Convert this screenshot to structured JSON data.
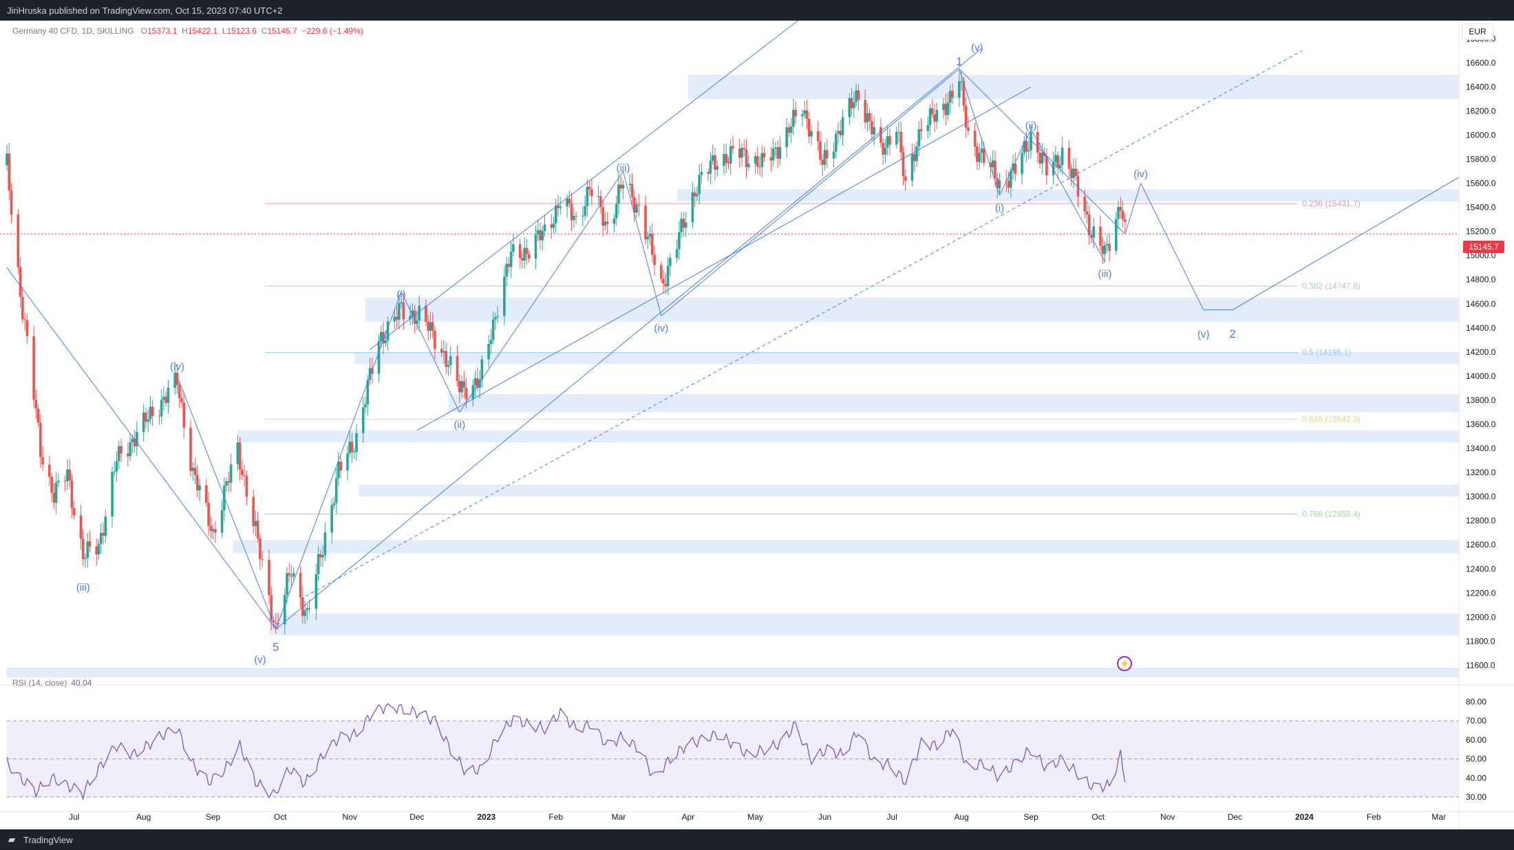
{
  "header": {
    "published": "JiriHruska published on TradingView.com, Oct 15, 2023 07:40 UTC+2"
  },
  "symbol": {
    "title": "Germany 40 CFD, 1D, SKILLING",
    "open_label": "O",
    "open": "15373.1",
    "high_label": "H",
    "high": "15422.1",
    "low_label": "L",
    "low": "15123.6",
    "close_label": "C",
    "close": "15145.7",
    "change": "−229.6 (−1.49%)"
  },
  "currency": "EUR",
  "last_price": "15145.7",
  "rsi": {
    "label": "RSI (14, close)",
    "value": "40.04"
  },
  "footer": {
    "brand": "TradingView"
  },
  "colors": {
    "up": "#26a69a",
    "down": "#ef5350",
    "wave": "#4a7ee8",
    "zone": "#e3ecfb",
    "rsi": "#7e57c2",
    "rsi_band": "#f1eefb"
  },
  "chart_data": {
    "type": "candlestick",
    "title": "Germany 40 CFD, 1D, SKILLING",
    "y_axis": {
      "ticks": [
        "16800.0",
        "16600.0",
        "16400.0",
        "16200.0",
        "16000.0",
        "15800.0",
        "15600.0",
        "15400.0",
        "15200.0",
        "15000.0",
        "14800.0",
        "14600.0",
        "14400.0",
        "14200.0",
        "14000.0",
        "13800.0",
        "13600.0",
        "13400.0",
        "13200.0",
        "13000.0",
        "12800.0",
        "12600.0",
        "12400.0",
        "12200.0",
        "12000.0",
        "11800.0",
        "11600.0"
      ],
      "range": [
        11500,
        16950
      ]
    },
    "x_axis": {
      "ticks": [
        "Jul",
        "Aug",
        "Sep",
        "Oct",
        "Nov",
        "Dec",
        "2023",
        "Feb",
        "Mar",
        "Apr",
        "May",
        "Jun",
        "Jul",
        "Aug",
        "Sep",
        "Oct",
        "Nov",
        "Dec",
        "2024",
        "Feb",
        "Mar"
      ],
      "range": [
        "2022-06-01",
        "2024-03-10"
      ]
    },
    "price_path": [
      [
        "2022-06-01",
        15750
      ],
      [
        "2022-06-07",
        14700
      ],
      [
        "2022-06-16",
        13400
      ],
      [
        "2022-06-22",
        13000
      ],
      [
        "2022-06-28",
        13200
      ],
      [
        "2022-07-05",
        12500
      ],
      [
        "2022-07-12",
        12600
      ],
      [
        "2022-07-20",
        13300
      ],
      [
        "2022-07-28",
        13500
      ],
      [
        "2022-08-05",
        13700
      ],
      [
        "2022-08-16",
        13950
      ],
      [
        "2022-08-23",
        13200
      ],
      [
        "2022-09-01",
        12700
      ],
      [
        "2022-09-12",
        13400
      ],
      [
        "2022-09-20",
        12700
      ],
      [
        "2022-09-29",
        11900
      ],
      [
        "2022-10-06",
        12400
      ],
      [
        "2022-10-13",
        12000
      ],
      [
        "2022-10-20",
        12600
      ],
      [
        "2022-10-27",
        13200
      ],
      [
        "2022-11-04",
        13500
      ],
      [
        "2022-11-14",
        14300
      ],
      [
        "2022-11-24",
        14550
      ],
      [
        "2022-12-02",
        14500
      ],
      [
        "2022-12-10",
        14300
      ],
      [
        "2022-12-20",
        13900
      ],
      [
        "2022-12-29",
        13950
      ],
      [
        "2023-01-06",
        14600
      ],
      [
        "2023-01-12",
        15000
      ],
      [
        "2023-01-20",
        15050
      ],
      [
        "2023-01-27",
        15200
      ],
      [
        "2023-02-03",
        15450
      ],
      [
        "2023-02-10",
        15300
      ],
      [
        "2023-02-16",
        15550
      ],
      [
        "2023-02-24",
        15250
      ],
      [
        "2023-03-03",
        15600
      ],
      [
        "2023-03-10",
        15400
      ],
      [
        "2023-03-20",
        14750
      ],
      [
        "2023-03-28",
        15150
      ],
      [
        "2023-04-05",
        15600
      ],
      [
        "2023-04-14",
        15800
      ],
      [
        "2023-04-25",
        15850
      ],
      [
        "2023-05-04",
        15750
      ],
      [
        "2023-05-15",
        16000
      ],
      [
        "2023-05-22",
        16250
      ],
      [
        "2023-05-31",
        15750
      ],
      [
        "2023-06-06",
        16000
      ],
      [
        "2023-06-16",
        16350
      ],
      [
        "2023-06-26",
        15850
      ],
      [
        "2023-07-03",
        16100
      ],
      [
        "2023-07-07",
        15550
      ],
      [
        "2023-07-14",
        16100
      ],
      [
        "2023-07-21",
        16150
      ],
      [
        "2023-07-31",
        16450
      ],
      [
        "2023-08-04",
        16000
      ],
      [
        "2023-08-11",
        15800
      ],
      [
        "2023-08-18",
        15600
      ],
      [
        "2023-08-25",
        15700
      ],
      [
        "2023-09-01",
        16000
      ],
      [
        "2023-09-08",
        15700
      ],
      [
        "2023-09-15",
        15850
      ],
      [
        "2023-09-22",
        15550
      ],
      [
        "2023-09-28",
        15200
      ],
      [
        "2023-10-04",
        15000
      ],
      [
        "2023-10-11",
        15450
      ],
      [
        "2023-10-13",
        15180
      ]
    ],
    "fibonacci": [
      {
        "level": "0.236",
        "label": "0.236 (15431.7)",
        "price": 15431.7,
        "color": "#ef9a9a"
      },
      {
        "level": "0.382",
        "label": "0.382 (14747.8)",
        "price": 14747.8,
        "color": "#a5d6a7"
      },
      {
        "level": "0.5",
        "label": "0.5 (14195.1)",
        "price": 14195.1,
        "color": "#90caf9"
      },
      {
        "level": "0.618",
        "label": "0.618 (13642.3)",
        "price": 13642.3,
        "color": "#ffcc80"
      },
      {
        "level": "0.786",
        "label": "0.786 (12855.4)",
        "price": 12855.4,
        "color": "#a5d6a7"
      }
    ],
    "zones": [
      {
        "from": 16300,
        "to": 16500,
        "start": "2023-04-01"
      },
      {
        "from": 15450,
        "to": 15550,
        "start": "2023-03-27"
      },
      {
        "from": 14450,
        "to": 14650,
        "start": "2022-11-08"
      },
      {
        "from": 14100,
        "to": 14200,
        "start": "2022-11-03"
      },
      {
        "from": 13700,
        "to": 13850,
        "start": "2022-12-15"
      },
      {
        "from": 13450,
        "to": 13550,
        "start": "2022-09-12"
      },
      {
        "from": 13000,
        "to": 13100,
        "start": "2022-11-05"
      },
      {
        "from": 12530,
        "to": 12640,
        "start": "2022-09-10"
      },
      {
        "from": 11850,
        "to": 12030,
        "start": "2022-09-26"
      },
      {
        "from": 11500,
        "to": 11580,
        "start": "2022-06-01"
      }
    ],
    "wave_labels": [
      {
        "text": "(iii)",
        "date": "2022-07-05",
        "price": 12300,
        "pos": "below"
      },
      {
        "text": "(iv)",
        "date": "2022-08-16",
        "price": 14050,
        "pos": "above"
      },
      {
        "text": "(v)",
        "date": "2022-09-22",
        "price": 11700,
        "pos": "below"
      },
      {
        "text": "5",
        "date": "2022-09-29",
        "price": 11800,
        "pos": "below",
        "big": true
      },
      {
        "text": "(i)",
        "date": "2022-11-24",
        "price": 14650,
        "pos": "above"
      },
      {
        "text": "(ii)",
        "date": "2022-12-20",
        "price": 13650,
        "pos": "below"
      },
      {
        "text": "(iii)",
        "date": "2023-03-03",
        "price": 15700,
        "pos": "above"
      },
      {
        "text": "(iv)",
        "date": "2023-03-20",
        "price": 14450,
        "pos": "below"
      },
      {
        "text": "1",
        "date": "2023-07-31",
        "price": 16580,
        "pos": "above",
        "big": true
      },
      {
        "text": "(v)",
        "date": "2023-08-08",
        "price": 16700,
        "pos": "above"
      },
      {
        "text": "(i)",
        "date": "2023-08-18",
        "price": 15450,
        "pos": "below"
      },
      {
        "text": "(ii)",
        "date": "2023-09-01",
        "price": 16050,
        "pos": "above"
      },
      {
        "text": "(iii)",
        "date": "2023-10-04",
        "price": 14900,
        "pos": "below"
      },
      {
        "text": "(iv)",
        "date": "2023-10-20",
        "price": 15650,
        "pos": "above"
      },
      {
        "text": "(v)",
        "date": "2023-11-17",
        "price": 14400,
        "pos": "below"
      },
      {
        "text": "2",
        "date": "2023-11-30",
        "price": 14400,
        "pos": "below",
        "big": true
      }
    ],
    "projection": [
      [
        "2023-10-13",
        15180
      ],
      [
        "2023-10-20",
        15600
      ],
      [
        "2023-11-17",
        14550
      ],
      [
        "2023-11-30",
        14550
      ],
      [
        "2024-03-10",
        15650
      ]
    ],
    "rsi": {
      "label": "RSI (14, close)",
      "value": 40.04,
      "ticks": [
        "80.00",
        "70.00",
        "60.00",
        "50.00",
        "40.00",
        "30.00"
      ],
      "range": [
        26,
        82
      ],
      "band": [
        30,
        70
      ],
      "mid": 50,
      "path": [
        [
          "2022-06-01",
          48
        ],
        [
          "2022-06-07",
          40
        ],
        [
          "2022-06-14",
          33
        ],
        [
          "2022-06-21",
          40
        ],
        [
          "2022-06-28",
          36
        ],
        [
          "2022-07-05",
          32
        ],
        [
          "2022-07-12",
          45
        ],
        [
          "2022-07-20",
          57
        ],
        [
          "2022-07-27",
          52
        ],
        [
          "2022-08-04",
          58
        ],
        [
          "2022-08-10",
          63
        ],
        [
          "2022-08-16",
          66
        ],
        [
          "2022-08-23",
          47
        ],
        [
          "2022-08-30",
          38
        ],
        [
          "2022-09-06",
          44
        ],
        [
          "2022-09-13",
          57
        ],
        [
          "2022-09-20",
          38
        ],
        [
          "2022-09-28",
          31
        ],
        [
          "2022-10-05",
          45
        ],
        [
          "2022-10-12",
          37
        ],
        [
          "2022-10-20",
          52
        ],
        [
          "2022-10-27",
          61
        ],
        [
          "2022-11-04",
          63
        ],
        [
          "2022-11-11",
          74
        ],
        [
          "2022-11-18",
          78
        ],
        [
          "2022-11-25",
          76
        ],
        [
          "2022-12-02",
          74
        ],
        [
          "2022-12-09",
          70
        ],
        [
          "2022-12-16",
          55
        ],
        [
          "2022-12-23",
          43
        ],
        [
          "2022-12-30",
          45
        ],
        [
          "2023-01-06",
          62
        ],
        [
          "2023-01-13",
          71
        ],
        [
          "2023-01-20",
          68
        ],
        [
          "2023-01-27",
          66
        ],
        [
          "2023-02-03",
          74
        ],
        [
          "2023-02-10",
          66
        ],
        [
          "2023-02-17",
          68
        ],
        [
          "2023-02-24",
          57
        ],
        [
          "2023-03-03",
          62
        ],
        [
          "2023-03-10",
          55
        ],
        [
          "2023-03-17",
          40
        ],
        [
          "2023-03-24",
          50
        ],
        [
          "2023-03-31",
          57
        ],
        [
          "2023-04-07",
          60
        ],
        [
          "2023-04-14",
          63
        ],
        [
          "2023-04-21",
          58
        ],
        [
          "2023-04-28",
          52
        ],
        [
          "2023-05-05",
          55
        ],
        [
          "2023-05-12",
          58
        ],
        [
          "2023-05-19",
          68
        ],
        [
          "2023-05-26",
          50
        ],
        [
          "2023-06-02",
          55
        ],
        [
          "2023-06-09",
          52
        ],
        [
          "2023-06-16",
          65
        ],
        [
          "2023-06-23",
          48
        ],
        [
          "2023-06-30",
          47
        ],
        [
          "2023-07-07",
          38
        ],
        [
          "2023-07-14",
          58
        ],
        [
          "2023-07-21",
          57
        ],
        [
          "2023-07-28",
          66
        ],
        [
          "2023-08-04",
          45
        ],
        [
          "2023-08-11",
          48
        ],
        [
          "2023-08-18",
          40
        ],
        [
          "2023-08-25",
          48
        ],
        [
          "2023-09-01",
          55
        ],
        [
          "2023-09-08",
          45
        ],
        [
          "2023-09-15",
          50
        ],
        [
          "2023-09-22",
          42
        ],
        [
          "2023-09-29",
          35
        ],
        [
          "2023-10-06",
          36
        ],
        [
          "2023-10-11",
          52
        ],
        [
          "2023-10-13",
          40
        ]
      ]
    }
  }
}
